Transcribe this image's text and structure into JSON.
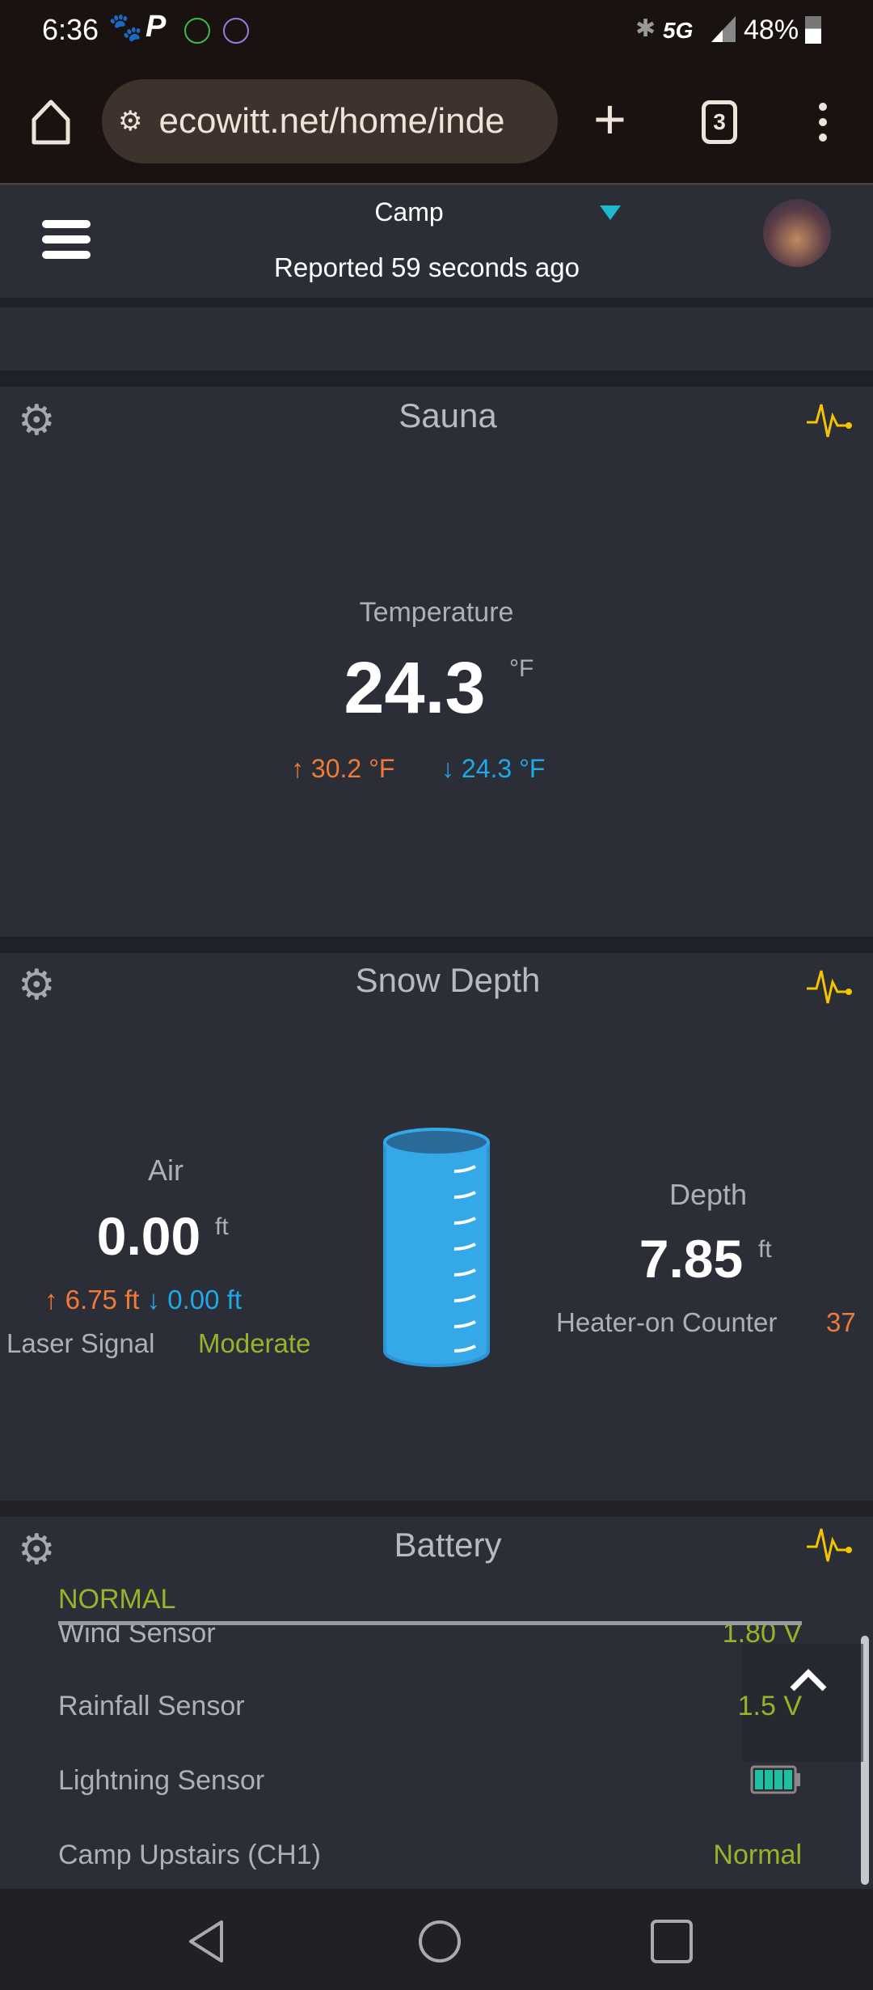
{
  "status_bar": {
    "time": "6:36",
    "network": "5G",
    "battery": "48%"
  },
  "browser": {
    "url": "ecowitt.net/home/inde",
    "tab_count": "3"
  },
  "header": {
    "location": "Camp",
    "reported": "Reported 59 seconds ago"
  },
  "sauna": {
    "title": "Sauna",
    "label": "Temperature",
    "value": "24.3",
    "unit": "°F",
    "high": "30.2 °F",
    "low": "24.3 °F"
  },
  "snow": {
    "title": "Snow Depth",
    "air_label": "Air",
    "air_value": "0.00",
    "air_unit": "ft",
    "air_high": "6.75 ft",
    "air_low": "0.00 ft",
    "laser_label": "Laser Signal",
    "laser_value": "Moderate",
    "depth_label": "Depth",
    "depth_value": "7.85",
    "depth_unit": "ft",
    "heater_label": "Heater-on Counter",
    "heater_value": "37"
  },
  "battery": {
    "title": "Battery",
    "status": "NORMAL",
    "rows": [
      {
        "name": "Wind Sensor",
        "value": "1.80 V"
      },
      {
        "name": "Rainfall Sensor",
        "value": "1.5 V"
      },
      {
        "name": "Lightning Sensor",
        "value": "",
        "level": 1.0
      },
      {
        "name": "Camp Upstairs (CH1)",
        "value": "Normal"
      }
    ]
  },
  "colors": {
    "accent": "#1eb8d0",
    "high": "#f07a3a",
    "low": "#1ea9e8",
    "ok": "#9ab22a",
    "chart_icon": "#f5c400"
  }
}
